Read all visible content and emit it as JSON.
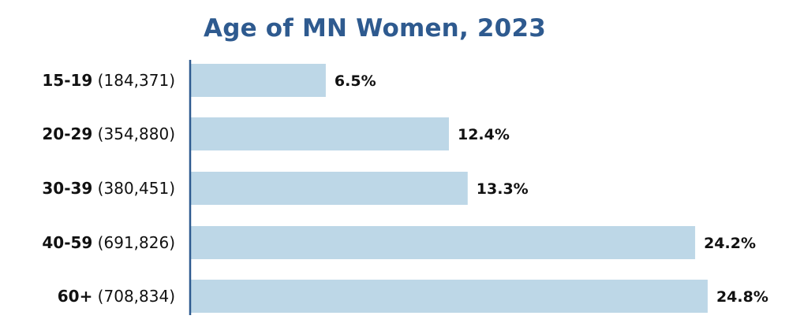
{
  "chart_data": {
    "type": "bar",
    "orientation": "horizontal",
    "title": "Age of MN Women, 2023",
    "categories": [
      "15-19",
      "20-29",
      "30-39",
      "40-59",
      "60+"
    ],
    "counts": [
      "(184,371)",
      "(354,880)",
      "(380,451)",
      "(691,826)",
      "(708,834)"
    ],
    "values": [
      6.5,
      12.4,
      13.3,
      24.2,
      24.8
    ],
    "value_labels": [
      "6.5%",
      "12.4%",
      "13.3%",
      "24.2%",
      "24.8%"
    ],
    "xlim": [
      0,
      25
    ],
    "grid": false,
    "legend": "none",
    "colors": {
      "bar": "#bdd7e7",
      "axis": "#2e5a8f",
      "title": "#2e5a8f",
      "text": "#111111"
    }
  }
}
